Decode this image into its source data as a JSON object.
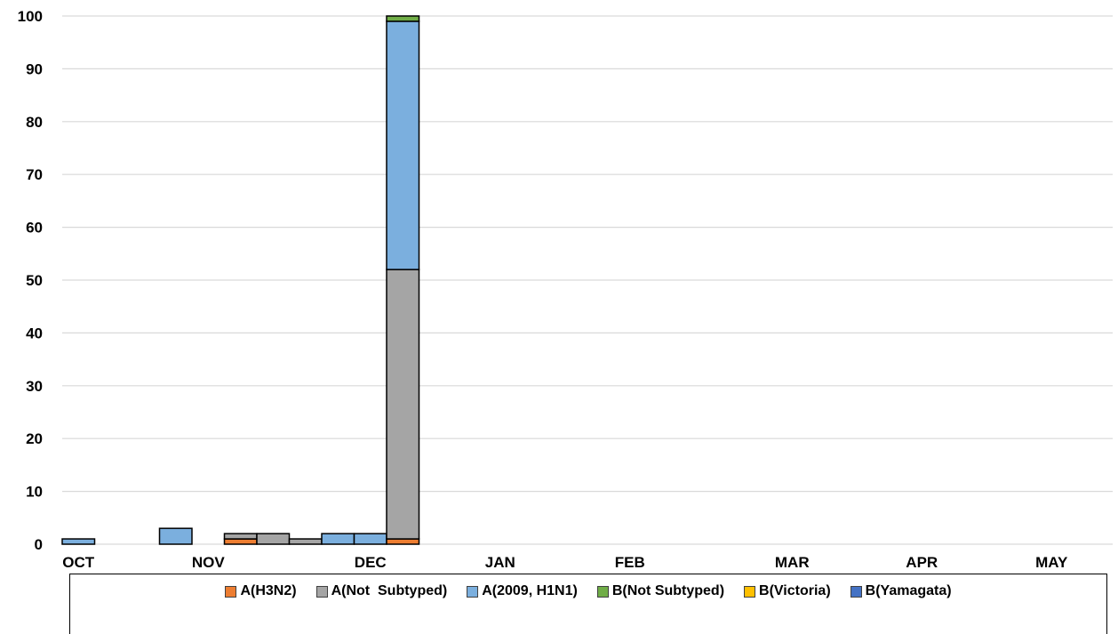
{
  "chart_data": {
    "type": "bar",
    "stacked": true,
    "ylim": [
      0,
      100
    ],
    "yticks": [
      0,
      10,
      20,
      30,
      40,
      50,
      60,
      70,
      80,
      90,
      100
    ],
    "grid": true,
    "legend_position": "bottom",
    "month_labels": [
      "OCT",
      "NOV",
      "DEC",
      "JAN",
      "FEB",
      "MAR",
      "APR",
      "MAY"
    ],
    "month_label_week_index": [
      0,
      4,
      9,
      13,
      17,
      22,
      26,
      30
    ],
    "weeks_shown": 33,
    "series": [
      {
        "name": "A(H3N2)",
        "color": "#ED7D31",
        "values": [
          0,
          0,
          0,
          0,
          0,
          1,
          0,
          0,
          0,
          0,
          1,
          0,
          0,
          0,
          0,
          0,
          0,
          0,
          0,
          0,
          0,
          0,
          0,
          0,
          0,
          0,
          0,
          0,
          0,
          0,
          0,
          0,
          0
        ]
      },
      {
        "name": "A(Not  Subtyped)",
        "color": "#A5A5A5",
        "values": [
          0,
          0,
          0,
          0,
          0,
          1,
          2,
          1,
          0,
          0,
          51,
          0,
          0,
          0,
          0,
          0,
          0,
          0,
          0,
          0,
          0,
          0,
          0,
          0,
          0,
          0,
          0,
          0,
          0,
          0,
          0,
          0,
          0
        ]
      },
      {
        "name": "A(2009, H1N1)",
        "color": "#7BAFDE",
        "values": [
          1,
          0,
          0,
          3,
          0,
          0,
          0,
          0,
          2,
          2,
          47,
          0,
          0,
          0,
          0,
          0,
          0,
          0,
          0,
          0,
          0,
          0,
          0,
          0,
          0,
          0,
          0,
          0,
          0,
          0,
          0,
          0,
          0
        ]
      },
      {
        "name": "B(Not Subtyped)",
        "color": "#70AD47",
        "values": [
          0,
          0,
          0,
          0,
          0,
          0,
          0,
          0,
          0,
          0,
          1,
          0,
          0,
          0,
          0,
          0,
          0,
          0,
          0,
          0,
          0,
          0,
          0,
          0,
          0,
          0,
          0,
          0,
          0,
          0,
          0,
          0,
          0
        ]
      },
      {
        "name": "B(Victoria)",
        "color": "#FFC000",
        "values": [
          0,
          0,
          0,
          0,
          0,
          0,
          0,
          0,
          0,
          0,
          0,
          0,
          0,
          0,
          0,
          0,
          0,
          0,
          0,
          0,
          0,
          0,
          0,
          0,
          0,
          0,
          0,
          0,
          0,
          0,
          0,
          0,
          0
        ]
      },
      {
        "name": "B(Yamagata)",
        "color": "#4472C4",
        "values": [
          0,
          0,
          0,
          0,
          0,
          0,
          0,
          0,
          0,
          0,
          0,
          0,
          0,
          0,
          0,
          0,
          0,
          0,
          0,
          0,
          0,
          0,
          0,
          0,
          0,
          0,
          0,
          0,
          0,
          0,
          0,
          0,
          0
        ]
      }
    ]
  }
}
